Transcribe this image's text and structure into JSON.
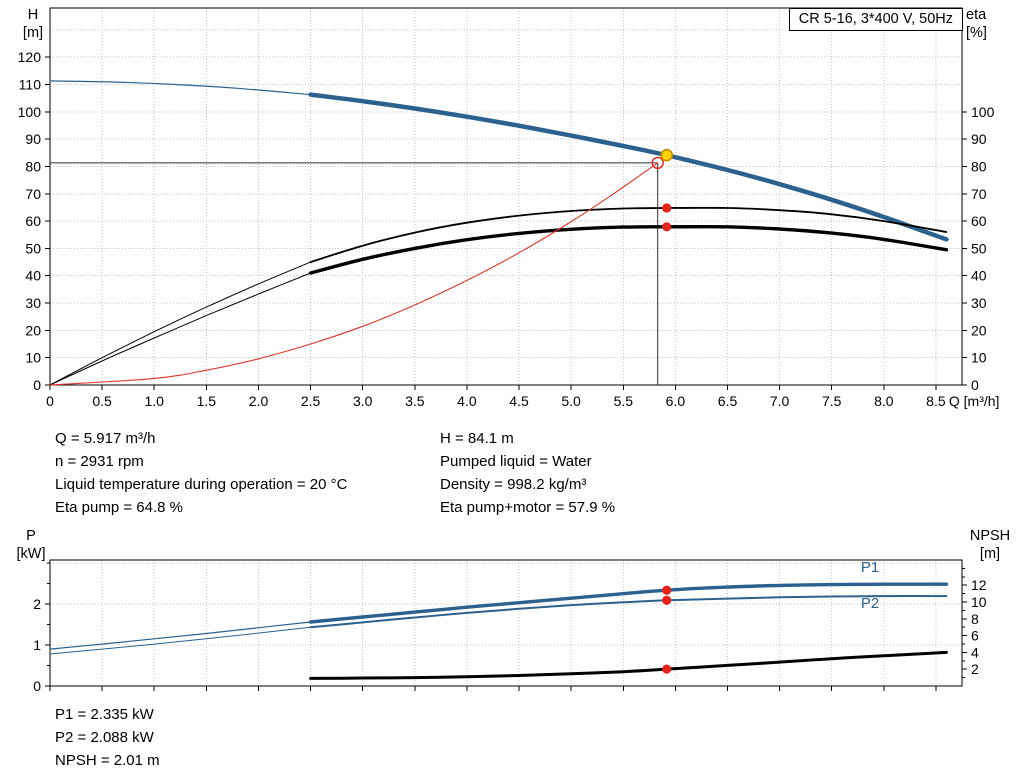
{
  "colors": {
    "blue": "#2b618f",
    "black": "#000000",
    "red": "#e0352b",
    "marker_red": "#e8231a",
    "marker_yellow": "#ffd400",
    "marker_yellow_ring": "#c98a00",
    "grid": "#c3c3c3"
  },
  "info": {
    "left": [
      "Q = 5.917 m³/h",
      "n = 2931 rpm",
      "Liquid temperature during operation = 20 °C",
      "Eta pump = 64.8 %"
    ],
    "right": [
      "H = 84.1 m",
      "Pumped liquid = Water",
      "Density = 998.2 kg/m³",
      "Eta pump+motor = 57.9 %"
    ]
  },
  "results": [
    "P1 = 2.335 kW",
    "P2 = 2.088 kW",
    "NPSH = 2.01 m"
  ],
  "chart_data": [
    {
      "type": "line",
      "title": "CR 5-16, 3*400 V, 50Hz",
      "x_axis": {
        "label": "Q [m³/h]",
        "min": 0,
        "max": 8.75,
        "tick_step": 0.5,
        "tick_max": 8.5,
        "show_tick_labels": true
      },
      "y_left": {
        "label": "H",
        "unit": "[m]",
        "min": 0,
        "max": 138,
        "tick_step": 10,
        "label_max": 120
      },
      "y_right": {
        "label": "eta",
        "unit": "[%]",
        "min": 0,
        "max": 138,
        "tick_step": 10,
        "label_max": 100
      },
      "grid": true,
      "legend_position": "none",
      "crosshair": {
        "q": 5.83,
        "v": 81.3,
        "axis": "left"
      },
      "series": [
        {
          "name": "hq-curve-extension",
          "axis": "left",
          "color": "blue",
          "width": 1.2,
          "points": [
            [
              0,
              111.3
            ],
            [
              0.6,
              110.9
            ],
            [
              1.2,
              110.0
            ],
            [
              1.8,
              108.6
            ],
            [
              2.5,
              106.3
            ]
          ]
        },
        {
          "name": "hq-curve",
          "axis": "left",
          "color": "blue",
          "width": 4.5,
          "points": [
            [
              2.5,
              106.3
            ],
            [
              3.0,
              103.9
            ],
            [
              3.5,
              101.2
            ],
            [
              4.0,
              98.2
            ],
            [
              4.5,
              94.9
            ],
            [
              5.0,
              91.3
            ],
            [
              5.5,
              87.5
            ],
            [
              5.917,
              84.1
            ],
            [
              6.5,
              78.7
            ],
            [
              7.0,
              73.5
            ],
            [
              7.5,
              67.8
            ],
            [
              8.0,
              61.5
            ],
            [
              8.6,
              53.3
            ]
          ]
        },
        {
          "name": "eta-pump-curve-extension",
          "axis": "right",
          "color": "black",
          "width": 1,
          "points": [
            [
              0,
              0
            ],
            [
              0.5,
              10.0
            ],
            [
              1.0,
              19.5
            ],
            [
              1.5,
              28.5
            ],
            [
              2.0,
              37.0
            ],
            [
              2.5,
              45.0
            ]
          ]
        },
        {
          "name": "eta-pump-curve",
          "axis": "right",
          "color": "black",
          "width": 1.8,
          "points": [
            [
              2.5,
              45.0
            ],
            [
              3.0,
              51.0
            ],
            [
              3.5,
              55.8
            ],
            [
              4.0,
              59.4
            ],
            [
              4.5,
              62.0
            ],
            [
              5.0,
              63.7
            ],
            [
              5.5,
              64.6
            ],
            [
              5.917,
              64.8
            ],
            [
              6.5,
              64.8
            ],
            [
              7.0,
              64.0
            ],
            [
              7.5,
              62.5
            ],
            [
              8.0,
              60.0
            ],
            [
              8.6,
              56.0
            ]
          ]
        },
        {
          "name": "eta-pump-motor-curve-extension",
          "axis": "right",
          "color": "black",
          "width": 1,
          "points": [
            [
              0,
              0
            ],
            [
              0.5,
              8.8
            ],
            [
              1.0,
              17.2
            ],
            [
              1.5,
              25.4
            ],
            [
              2.0,
              33.3
            ],
            [
              2.5,
              41.0
            ]
          ]
        },
        {
          "name": "eta-pump-motor-curve",
          "axis": "right",
          "color": "black",
          "width": 3.4,
          "points": [
            [
              2.5,
              41.0
            ],
            [
              3.0,
              46.0
            ],
            [
              3.5,
              50.0
            ],
            [
              4.0,
              53.2
            ],
            [
              4.5,
              55.5
            ],
            [
              5.0,
              57.0
            ],
            [
              5.5,
              57.8
            ],
            [
              5.917,
              57.9
            ],
            [
              6.5,
              57.9
            ],
            [
              7.0,
              57.1
            ],
            [
              7.5,
              55.6
            ],
            [
              8.0,
              53.3
            ],
            [
              8.6,
              49.5
            ]
          ]
        },
        {
          "name": "system-curve",
          "axis": "left",
          "color": "red",
          "width": 1.1,
          "points": [
            [
              0,
              0
            ],
            [
              1.0,
              2.4
            ],
            [
              1.5,
              5.4
            ],
            [
              2.0,
              9.6
            ],
            [
              2.5,
              15.0
            ],
            [
              3.0,
              21.5
            ],
            [
              3.5,
              29.3
            ],
            [
              4.0,
              38.3
            ],
            [
              4.5,
              48.4
            ],
            [
              5.0,
              59.8
            ],
            [
              5.4,
              69.8
            ],
            [
              5.83,
              81.3
            ]
          ]
        }
      ],
      "markers": [
        {
          "name": "clicked-point",
          "style": "open-red",
          "axis": "left",
          "q": 5.83,
          "v": 81.3
        },
        {
          "name": "duty-point-head",
          "style": "yellow",
          "axis": "left",
          "q": 5.917,
          "v": 84.1
        },
        {
          "name": "duty-point-eta-pump",
          "style": "red",
          "axis": "right",
          "q": 5.917,
          "v": 64.8
        },
        {
          "name": "duty-point-eta-pump-motor",
          "style": "red",
          "axis": "right",
          "q": 5.917,
          "v": 57.9
        }
      ],
      "annotations": []
    },
    {
      "type": "line",
      "title": "",
      "x_axis": {
        "label": "",
        "min": 0,
        "max": 8.75,
        "tick_step": 0.5,
        "tick_max": 8.5,
        "show_tick_labels": false
      },
      "y_left": {
        "label": "P",
        "unit": "[kW]",
        "min": 0,
        "max": 3.07,
        "tick_step": 1,
        "label_max": 2,
        "minor_step": 0.5
      },
      "y_right": {
        "label": "NPSH",
        "unit": "[m]",
        "min": 0,
        "max": 15,
        "tick_step": 2,
        "label_max": 12,
        "labels_from": 2,
        "minor_step": 1
      },
      "grid": true,
      "legend_position": "inline-right",
      "series": [
        {
          "name": "p1-curve-extension",
          "axis": "left",
          "color": "blue",
          "width": 1.2,
          "points": [
            [
              0,
              0.9
            ],
            [
              0.5,
              1.02
            ],
            [
              1.0,
              1.15
            ],
            [
              1.5,
              1.28
            ],
            [
              2.0,
              1.42
            ],
            [
              2.5,
              1.56
            ]
          ]
        },
        {
          "name": "p1-curve",
          "axis": "left",
          "color": "blue",
          "width": 3.4,
          "points": [
            [
              2.5,
              1.56
            ],
            [
              3.0,
              1.68
            ],
            [
              3.5,
              1.8
            ],
            [
              4.0,
              1.92
            ],
            [
              4.5,
              2.03
            ],
            [
              5.0,
              2.14
            ],
            [
              5.5,
              2.25
            ],
            [
              5.917,
              2.335
            ],
            [
              6.5,
              2.41
            ],
            [
              7.0,
              2.45
            ],
            [
              7.5,
              2.47
            ],
            [
              8.0,
              2.48
            ],
            [
              8.6,
              2.48
            ]
          ]
        },
        {
          "name": "p2-curve-extension",
          "axis": "left",
          "color": "blue",
          "width": 1,
          "points": [
            [
              0,
              0.78
            ],
            [
              0.5,
              0.9
            ],
            [
              1.0,
              1.02
            ],
            [
              1.5,
              1.15
            ],
            [
              2.0,
              1.29
            ],
            [
              2.5,
              1.43
            ]
          ]
        },
        {
          "name": "p2-curve",
          "axis": "left",
          "color": "blue",
          "width": 2,
          "points": [
            [
              2.5,
              1.43
            ],
            [
              3.0,
              1.55
            ],
            [
              3.5,
              1.67
            ],
            [
              4.0,
              1.78
            ],
            [
              4.5,
              1.88
            ],
            [
              5.0,
              1.97
            ],
            [
              5.5,
              2.04
            ],
            [
              5.917,
              2.088
            ],
            [
              6.5,
              2.13
            ],
            [
              7.0,
              2.16
            ],
            [
              7.5,
              2.18
            ],
            [
              8.0,
              2.19
            ],
            [
              8.6,
              2.19
            ]
          ]
        },
        {
          "name": "npsh-curve",
          "axis": "right",
          "color": "black",
          "width": 3,
          "points": [
            [
              2.5,
              0.9
            ],
            [
              3.0,
              0.95
            ],
            [
              3.5,
              1.0
            ],
            [
              4.0,
              1.1
            ],
            [
              4.5,
              1.25
            ],
            [
              5.0,
              1.45
            ],
            [
              5.5,
              1.7
            ],
            [
              5.917,
              2.01
            ],
            [
              6.5,
              2.45
            ],
            [
              7.0,
              2.85
            ],
            [
              7.5,
              3.25
            ],
            [
              8.0,
              3.6
            ],
            [
              8.6,
              4.0
            ]
          ]
        }
      ],
      "markers": [
        {
          "name": "duty-point-p1",
          "style": "red",
          "axis": "left",
          "q": 5.917,
          "v": 2.335
        },
        {
          "name": "duty-point-p2",
          "style": "red",
          "axis": "left",
          "q": 5.917,
          "v": 2.088
        },
        {
          "name": "duty-point-npsh",
          "style": "red",
          "axis": "right",
          "q": 5.917,
          "v": 2.01
        }
      ],
      "annotations": [
        {
          "name": "p1-label",
          "text": "P1",
          "q": 7.78,
          "v": 2.78,
          "axis": "left",
          "color": "blue"
        },
        {
          "name": "p2-label",
          "text": "P2",
          "q": 7.78,
          "v": 1.9,
          "axis": "left",
          "color": "blue"
        }
      ]
    }
  ]
}
